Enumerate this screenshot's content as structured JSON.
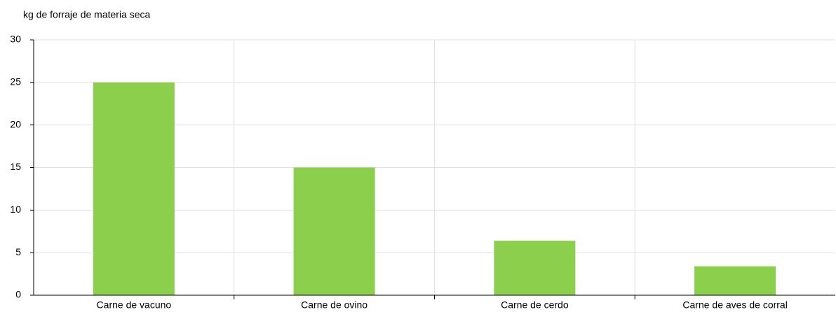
{
  "chart_data": {
    "type": "bar",
    "y_label": "kg de forraje de materia seca",
    "categories": [
      "Carne de vacuno",
      "Carne de ovino",
      "Carne de cerdo",
      "Carne de aves de corral"
    ],
    "values": [
      25,
      15,
      6.4,
      3.4
    ],
    "color": "#8ccf4d",
    "ylim": [
      0,
      30
    ],
    "yticks": [
      0,
      5,
      10,
      15,
      20,
      25,
      30
    ],
    "grid": true
  }
}
